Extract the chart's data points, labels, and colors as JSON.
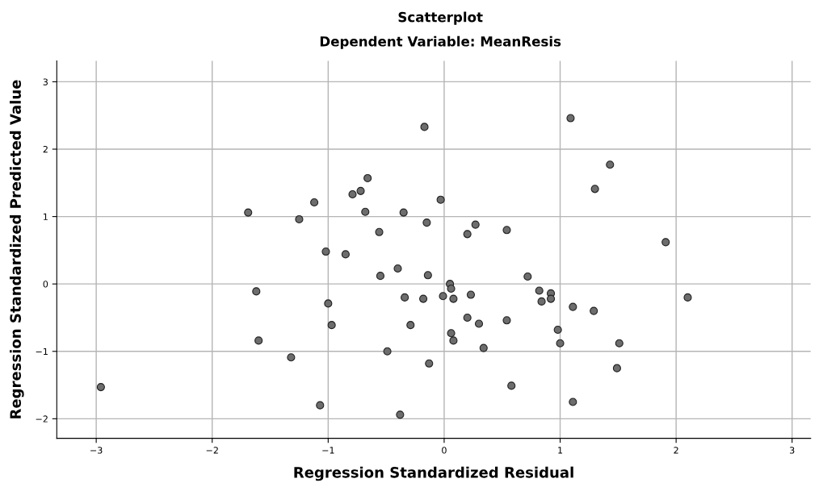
{
  "chart_data": {
    "type": "scatter",
    "title": "Scatterplot",
    "subtitle": "Dependent Variable: MeanResis",
    "xlabel": "Regression Standardized Residual",
    "ylabel": "Regression Standardized Predicted Value",
    "xlim": [
      -3.34,
      3.16
    ],
    "ylim": [
      -2.29,
      3.31
    ],
    "xticks": [
      -3,
      -2,
      -1,
      0,
      1,
      2,
      3
    ],
    "yticks": [
      -2,
      -1,
      0,
      1,
      2,
      3
    ],
    "grid": true,
    "marker": "circle",
    "series": [
      {
        "color": "#6d6d6d",
        "x": [
          -2.96,
          -1.69,
          -1.62,
          -1.6,
          -1.32,
          -1.25,
          -1.12,
          -1.07,
          -1.02,
          -1.0,
          -0.97,
          -0.85,
          -0.79,
          -0.72,
          -0.68,
          -0.66,
          -0.56,
          -0.55,
          -0.49,
          -0.4,
          -0.38,
          -0.35,
          -0.34,
          -0.29,
          -0.18,
          -0.17,
          -0.15,
          -0.03,
          -0.14,
          -0.13,
          -0.01,
          0.05,
          0.06,
          0.08,
          0.06,
          0.08,
          0.2,
          0.2,
          0.23,
          0.27,
          0.3,
          0.34,
          0.54,
          0.54,
          0.58,
          0.72,
          0.82,
          0.84,
          0.92,
          0.92,
          0.98,
          1.0,
          1.09,
          1.11,
          1.11,
          1.3,
          1.29,
          1.43,
          1.49,
          1.51,
          1.91,
          2.1
        ],
        "values": [
          -1.53,
          1.06,
          -0.11,
          -0.84,
          -1.09,
          0.96,
          1.21,
          -1.8,
          0.48,
          -0.29,
          -0.61,
          0.44,
          1.33,
          1.38,
          1.07,
          1.57,
          0.77,
          0.12,
          -1.0,
          0.23,
          -1.94,
          1.06,
          -0.2,
          -0.61,
          -0.22,
          2.33,
          0.91,
          1.25,
          0.13,
          -1.18,
          -0.18,
          0.0,
          -0.07,
          -0.22,
          -0.73,
          -0.84,
          0.74,
          -0.5,
          -0.16,
          0.88,
          -0.59,
          -0.95,
          0.8,
          -0.54,
          -1.51,
          0.11,
          -0.1,
          -0.26,
          -0.14,
          -0.22,
          -0.68,
          -0.88,
          2.46,
          -0.34,
          -1.75,
          1.41,
          -0.4,
          1.77,
          -1.25,
          -0.88,
          0.62,
          -0.2
        ]
      }
    ]
  }
}
